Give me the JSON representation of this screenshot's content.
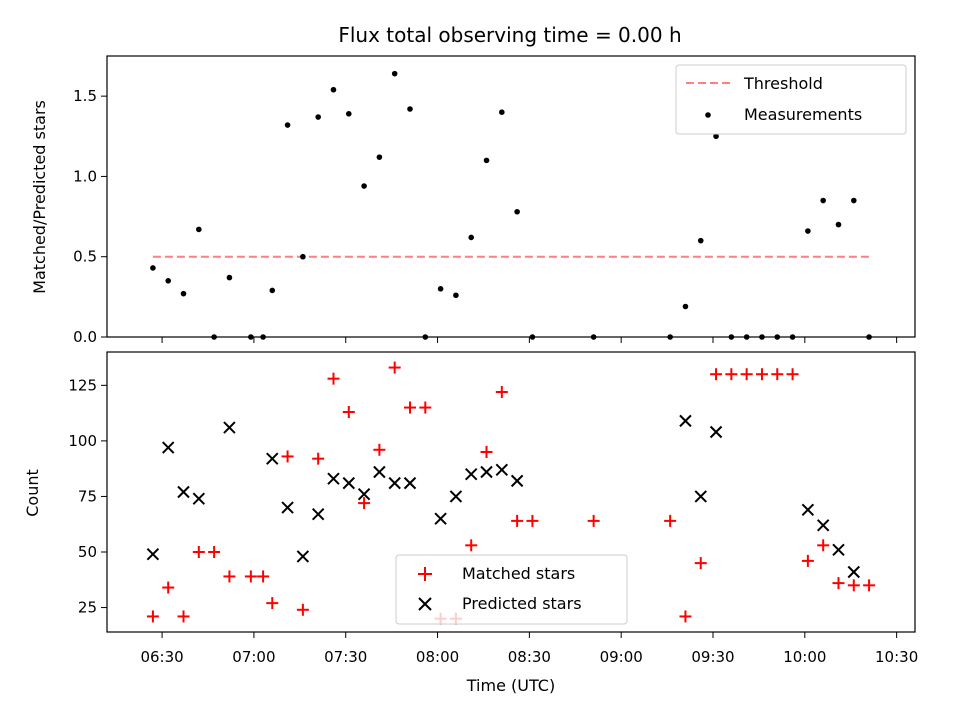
{
  "chart_data": [
    {
      "type": "scatter",
      "title": "Flux total observing time = 0.00 h",
      "ylabel": "Matched/Predicted stars",
      "xlabel": "",
      "xlim": [
        "06:12",
        "10:36"
      ],
      "ylim": [
        0,
        1.75
      ],
      "yticks": [
        0.0,
        0.5,
        1.0,
        1.5
      ],
      "ytick_labels": [
        "0.0",
        "0.5",
        "1.0",
        "1.5"
      ],
      "legend_position": "top-right",
      "threshold": {
        "name": "Threshold",
        "y": 0.5,
        "x_start": "06:27",
        "x_end": "10:21",
        "color": "#ff7f7f",
        "style": "dashed"
      },
      "series": [
        {
          "name": "Measurements",
          "marker": "dot",
          "color": "#000000",
          "points": [
            [
              "06:27",
              0.43
            ],
            [
              "06:32",
              0.35
            ],
            [
              "06:37",
              0.27
            ],
            [
              "06:42",
              0.67
            ],
            [
              "06:47",
              0.0
            ],
            [
              "06:52",
              0.37
            ],
            [
              "06:59",
              0.0
            ],
            [
              "07:03",
              0.0
            ],
            [
              "07:06",
              0.29
            ],
            [
              "07:11",
              1.32
            ],
            [
              "07:16",
              0.5
            ],
            [
              "07:21",
              1.37
            ],
            [
              "07:26",
              1.54
            ],
            [
              "07:31",
              1.39
            ],
            [
              "07:36",
              0.94
            ],
            [
              "07:41",
              1.12
            ],
            [
              "07:46",
              1.64
            ],
            [
              "07:51",
              1.42
            ],
            [
              "07:56",
              0.0
            ],
            [
              "08:01",
              0.3
            ],
            [
              "08:06",
              0.26
            ],
            [
              "08:11",
              0.62
            ],
            [
              "08:16",
              1.1
            ],
            [
              "08:21",
              1.4
            ],
            [
              "08:26",
              0.78
            ],
            [
              "08:31",
              0.0
            ],
            [
              "08:51",
              0.0
            ],
            [
              "09:16",
              0.0
            ],
            [
              "09:21",
              0.19
            ],
            [
              "09:26",
              0.6
            ],
            [
              "09:31",
              1.25
            ],
            [
              "09:36",
              0.0
            ],
            [
              "09:41",
              0.0
            ],
            [
              "09:46",
              0.0
            ],
            [
              "09:51",
              0.0
            ],
            [
              "09:56",
              0.0
            ],
            [
              "10:01",
              0.66
            ],
            [
              "10:06",
              0.85
            ],
            [
              "10:11",
              0.7
            ],
            [
              "10:16",
              0.85
            ],
            [
              "10:21",
              0.0
            ]
          ]
        }
      ]
    },
    {
      "type": "scatter",
      "title": "",
      "xlabel": "Time (UTC)",
      "ylabel": "Count",
      "xlim": [
        "06:12",
        "10:36"
      ],
      "ylim": [
        14,
        140
      ],
      "xticks": [
        "06:30",
        "07:00",
        "07:30",
        "08:00",
        "08:30",
        "09:00",
        "09:30",
        "10:00",
        "10:30"
      ],
      "yticks": [
        25,
        50,
        75,
        100,
        125
      ],
      "ytick_labels": [
        "25",
        "50",
        "75",
        "100",
        "125"
      ],
      "legend_position": "lower-center",
      "series": [
        {
          "name": "Matched stars",
          "marker": "plus",
          "color": "#ff0000",
          "points": [
            [
              "06:27",
              21
            ],
            [
              "06:32",
              34
            ],
            [
              "06:37",
              21
            ],
            [
              "06:42",
              50
            ],
            [
              "06:47",
              50
            ],
            [
              "06:52",
              39
            ],
            [
              "06:59",
              39
            ],
            [
              "07:03",
              39
            ],
            [
              "07:06",
              27
            ],
            [
              "07:11",
              93
            ],
            [
              "07:16",
              24
            ],
            [
              "07:21",
              92
            ],
            [
              "07:26",
              128
            ],
            [
              "07:31",
              113
            ],
            [
              "07:36",
              72
            ],
            [
              "07:41",
              96
            ],
            [
              "07:46",
              133
            ],
            [
              "07:51",
              115
            ],
            [
              "07:56",
              115
            ],
            [
              "08:01",
              20
            ],
            [
              "08:06",
              20
            ],
            [
              "08:11",
              53
            ],
            [
              "08:16",
              95
            ],
            [
              "08:21",
              122
            ],
            [
              "08:26",
              64
            ],
            [
              "08:31",
              64
            ],
            [
              "08:51",
              64
            ],
            [
              "09:16",
              64
            ],
            [
              "09:21",
              21
            ],
            [
              "09:26",
              45
            ],
            [
              "09:31",
              130
            ],
            [
              "09:36",
              130
            ],
            [
              "09:41",
              130
            ],
            [
              "09:46",
              130
            ],
            [
              "09:51",
              130
            ],
            [
              "09:56",
              130
            ],
            [
              "10:01",
              46
            ],
            [
              "10:06",
              53
            ],
            [
              "10:11",
              36
            ],
            [
              "10:16",
              35
            ],
            [
              "10:21",
              35
            ]
          ]
        },
        {
          "name": "Predicted stars",
          "marker": "x",
          "color": "#000000",
          "points": [
            [
              "06:27",
              49
            ],
            [
              "06:32",
              97
            ],
            [
              "06:37",
              77
            ],
            [
              "06:42",
              74
            ],
            [
              "06:52",
              106
            ],
            [
              "07:06",
              92
            ],
            [
              "07:11",
              70
            ],
            [
              "07:16",
              48
            ],
            [
              "07:21",
              67
            ],
            [
              "07:26",
              83
            ],
            [
              "07:31",
              81
            ],
            [
              "07:36",
              76
            ],
            [
              "07:41",
              86
            ],
            [
              "07:46",
              81
            ],
            [
              "07:51",
              81
            ],
            [
              "08:01",
              65
            ],
            [
              "08:06",
              75
            ],
            [
              "08:11",
              85
            ],
            [
              "08:16",
              86
            ],
            [
              "08:21",
              87
            ],
            [
              "08:26",
              82
            ],
            [
              "09:21",
              109
            ],
            [
              "09:26",
              75
            ],
            [
              "09:31",
              104
            ],
            [
              "10:01",
              69
            ],
            [
              "10:06",
              62
            ],
            [
              "10:11",
              51
            ],
            [
              "10:16",
              41
            ]
          ]
        }
      ]
    }
  ]
}
